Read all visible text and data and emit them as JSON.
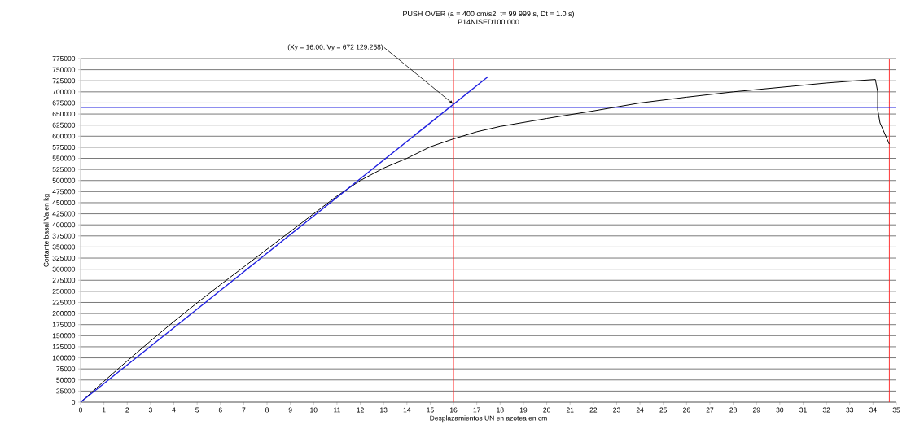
{
  "chart_data": {
    "type": "line",
    "title": "PUSH OVER (a = 400 cm/s2, t= 99 999 s, Dt = 1.0 s)",
    "subtitle": "P14NISED100.000",
    "xlabel": "Desplazamientos UN en azotea en cm",
    "ylabel": "Cortante basal Va en kg",
    "xlim": [
      0,
      35
    ],
    "ylim": [
      0,
      775000
    ],
    "xticks": [
      0,
      1,
      2,
      3,
      4,
      5,
      6,
      7,
      8,
      9,
      10,
      11,
      12,
      13,
      14,
      15,
      16,
      17,
      18,
      19,
      20,
      21,
      22,
      23,
      24,
      25,
      26,
      27,
      28,
      29,
      30,
      31,
      32,
      33,
      34,
      35
    ],
    "yticks": [
      0,
      25000,
      50000,
      75000,
      100000,
      125000,
      150000,
      175000,
      200000,
      225000,
      250000,
      275000,
      300000,
      325000,
      350000,
      375000,
      400000,
      425000,
      450000,
      475000,
      500000,
      525000,
      550000,
      575000,
      600000,
      625000,
      650000,
      675000,
      700000,
      725000,
      750000,
      775000
    ],
    "grid": "y",
    "marker": "none",
    "line_style": "solid",
    "series": [
      {
        "color": "#000000",
        "x": [
          0,
          1,
          2,
          3,
          4,
          5,
          6,
          7,
          8,
          9,
          10,
          11,
          12,
          13,
          14,
          15,
          16,
          17,
          18,
          20,
          22,
          24,
          26,
          28,
          30,
          32,
          33,
          34.1,
          34.2,
          34.2,
          34.3,
          34.7
        ],
        "values": [
          0,
          47000,
          93000,
          138000,
          182000,
          224000,
          265000,
          305000,
          345000,
          385000,
          425000,
          465000,
          500000,
          528000,
          550000,
          576000,
          594000,
          610000,
          622000,
          640000,
          657000,
          675000,
          688000,
          700000,
          710000,
          720000,
          724000,
          728000,
          700000,
          660000,
          630000,
          582000
        ]
      },
      {
        "color": "#1f1fe0",
        "x": [
          0,
          17.5
        ],
        "values": [
          0,
          735000
        ]
      }
    ],
    "ref_lines": [
      {
        "axis": "x",
        "value": 16,
        "color": "#ff2020"
      },
      {
        "axis": "x",
        "value": 34.7,
        "color": "#ff2020"
      },
      {
        "axis": "y",
        "value": 665000,
        "color": "#1f1fe0"
      }
    ],
    "annotations": [
      {
        "text": "(Xy = 16.00, Vy = 672 129.258)",
        "x": 16,
        "y": 672129
      }
    ]
  }
}
